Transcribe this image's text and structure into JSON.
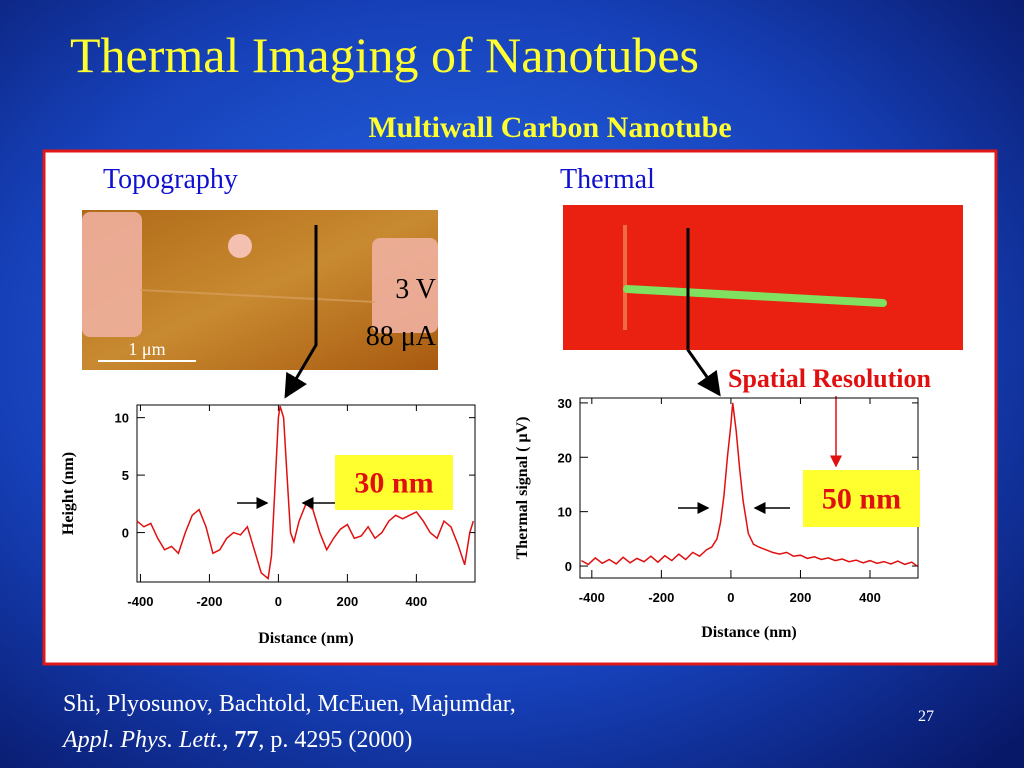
{
  "slide": {
    "title": "Thermal Imaging of Nanotubes",
    "subtitle": "Multiwall Carbon Nanotube",
    "panel_left": "Topography",
    "panel_right": "Thermal",
    "topo_voltage": "3 V",
    "topo_current": "88 μA",
    "scale_bar": "1 μm",
    "callout": "Spatial Resolution",
    "authors": "Shi, Plyosunov, Bachtold, McEuen, Majumdar,",
    "journal": "Appl. Phys. Lett.,",
    "volume": "77",
    "pages": ", p. 4295 (2000)",
    "page_number": "27"
  },
  "chart_data": [
    {
      "type": "line",
      "xlabel": "Distance (nm)",
      "ylabel": "Height (nm)",
      "annotation": "30 nm",
      "x": [
        -410,
        -390,
        -370,
        -350,
        -330,
        -310,
        -290,
        -270,
        -250,
        -230,
        -210,
        -190,
        -170,
        -150,
        -130,
        -110,
        -90,
        -70,
        -50,
        -30,
        -20,
        -10,
        0,
        5,
        15,
        25,
        35,
        45,
        60,
        80,
        100,
        120,
        140,
        160,
        180,
        200,
        220,
        240,
        260,
        280,
        300,
        320,
        340,
        360,
        380,
        400,
        420,
        440,
        460,
        480,
        500,
        520,
        540,
        555,
        565
      ],
      "series": [
        {
          "color": "#e01010",
          "values": [
            1,
            0.5,
            0.8,
            -0.5,
            -1.5,
            -1.2,
            -1.8,
            0,
            1.5,
            2,
            0.5,
            -1.8,
            -1.5,
            -0.5,
            0,
            -0.2,
            0.5,
            -1.5,
            -3.5,
            -4,
            -2,
            4,
            10,
            11,
            10,
            5,
            0,
            -0.8,
            1,
            2.5,
            2,
            0,
            -1.5,
            -0.5,
            0.3,
            0.7,
            -0.5,
            -0.3,
            0.5,
            -0.5,
            0,
            1,
            1.5,
            1.2,
            1.5,
            1.8,
            1,
            0,
            -0.5,
            1,
            0.5,
            -1,
            -2.8,
            0,
            1
          ]
        }
      ],
      "xlim": [
        -410,
        570
      ],
      "ylim": [
        -4.3,
        11.1
      ],
      "xticks": [
        -400,
        -200,
        0,
        200,
        400
      ],
      "yticks": [
        0,
        5,
        10
      ]
    },
    {
      "type": "line",
      "xlabel": "Distance (nm)",
      "ylabel": "Thermal signal ( μV)",
      "annotation": "50 nm",
      "x": [
        -430,
        -410,
        -390,
        -370,
        -350,
        -330,
        -310,
        -290,
        -270,
        -250,
        -230,
        -210,
        -190,
        -170,
        -150,
        -130,
        -110,
        -90,
        -70,
        -55,
        -40,
        -30,
        -20,
        -10,
        0,
        5,
        15,
        25,
        35,
        50,
        65,
        80,
        100,
        120,
        140,
        160,
        180,
        200,
        220,
        240,
        260,
        280,
        300,
        320,
        340,
        360,
        380,
        400,
        420,
        440,
        460,
        480,
        500,
        520,
        535
      ],
      "series": [
        {
          "color": "#e01010",
          "values": [
            1,
            0.3,
            1.5,
            0.5,
            1.2,
            0.4,
            1.6,
            0.6,
            1.4,
            0.8,
            1.8,
            0.7,
            1.9,
            1,
            2.2,
            1.2,
            2.5,
            1.8,
            3,
            3.5,
            5,
            8,
            13,
            20,
            26,
            30,
            25,
            18,
            12,
            6,
            4,
            3.5,
            3,
            2.5,
            2.2,
            2.5,
            1.8,
            2,
            1.4,
            1.7,
            1.2,
            1.5,
            1,
            1.3,
            0.8,
            1.1,
            0.6,
            1,
            0.5,
            0.8,
            0.4,
            0.9,
            0.3,
            0.7,
            0
          ]
        }
      ],
      "xlim": [
        -434,
        538
      ],
      "ylim": [
        -2.2,
        30.9
      ],
      "xticks": [
        -400,
        -200,
        0,
        200,
        400
      ],
      "yticks": [
        0,
        10,
        20,
        30
      ]
    }
  ]
}
